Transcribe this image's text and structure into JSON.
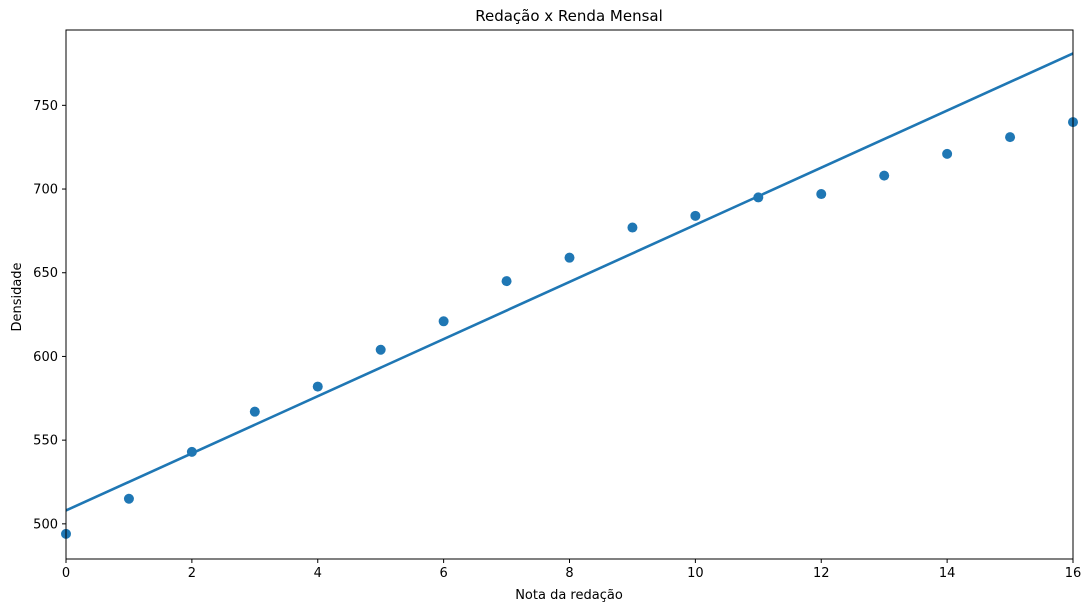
{
  "chart_data": {
    "type": "scatter",
    "title": "Redação x Renda Mensal",
    "xlabel": "Nota da redação",
    "ylabel": "Densidade",
    "xlim": [
      0,
      16
    ],
    "ylim": [
      479,
      795
    ],
    "xticks": [
      0,
      2,
      4,
      6,
      8,
      10,
      12,
      14,
      16
    ],
    "yticks": [
      500,
      550,
      600,
      650,
      700,
      750
    ],
    "grid": false,
    "colors": {
      "series": "#1f77b4"
    },
    "series": [
      {
        "type": "scatter",
        "x": [
          0,
          1,
          2,
          3,
          4,
          5,
          6,
          7,
          8,
          9,
          10,
          11,
          12,
          13,
          14,
          15,
          16
        ],
        "y": [
          494,
          515,
          543,
          567,
          582,
          604,
          621,
          645,
          659,
          677,
          684,
          695,
          697,
          708,
          721,
          731,
          740
        ]
      },
      {
        "type": "line",
        "x": [
          0,
          16
        ],
        "y": [
          508,
          781
        ]
      }
    ]
  }
}
